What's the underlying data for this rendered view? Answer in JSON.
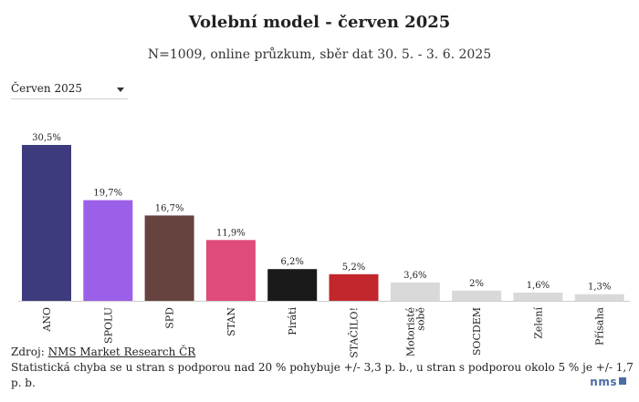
{
  "header": {
    "title": "Volební model - červen 2025",
    "subtitle": "N=1009, online průzkum, sběr dat 30. 5. - 3. 6. 2025"
  },
  "period_select": {
    "value": "Červen 2025"
  },
  "chart_data": {
    "type": "bar",
    "title": "Volební model - červen 2025",
    "subtitle": "N=1009, online průzkum, sběr dat 30. 5. - 3. 6. 2025",
    "categories": [
      "ANO",
      "SPOLU",
      "SPD",
      "STAN",
      "Piráti",
      "STAČILO!",
      "Motoristé sobě",
      "SOCDEM",
      "Zelení",
      "Přísaha"
    ],
    "values": [
      30.5,
      19.7,
      16.7,
      11.9,
      6.2,
      5.2,
      3.6,
      2,
      1.6,
      1.3
    ],
    "value_labels": [
      "30,5%",
      "19,7%",
      "16,7%",
      "11,9%",
      "6,2%",
      "5,2%",
      "3,6%",
      "2%",
      "1,6%",
      "1,3%"
    ],
    "colors": [
      "#3e3a7e",
      "#9c5fe8",
      "#66433f",
      "#df4b7a",
      "#1a1a1a",
      "#c1272d",
      "#d9d9d9",
      "#d9d9d9",
      "#d9d9d9",
      "#d9d9d9"
    ],
    "ylim": [
      0,
      30.5
    ],
    "grid": false,
    "xlabel": "",
    "ylabel": ""
  },
  "footer": {
    "source_prefix": "Zdroj: ",
    "source_link": "NMS Market Research ČR",
    "note": "Statistická chyba se u stran s podporou nad 20 % pohybuje +/- 3,3 p. b., u stran s podporou okolo 5 % je +/- 1,7 p. b."
  },
  "logo": {
    "text": "nms"
  }
}
